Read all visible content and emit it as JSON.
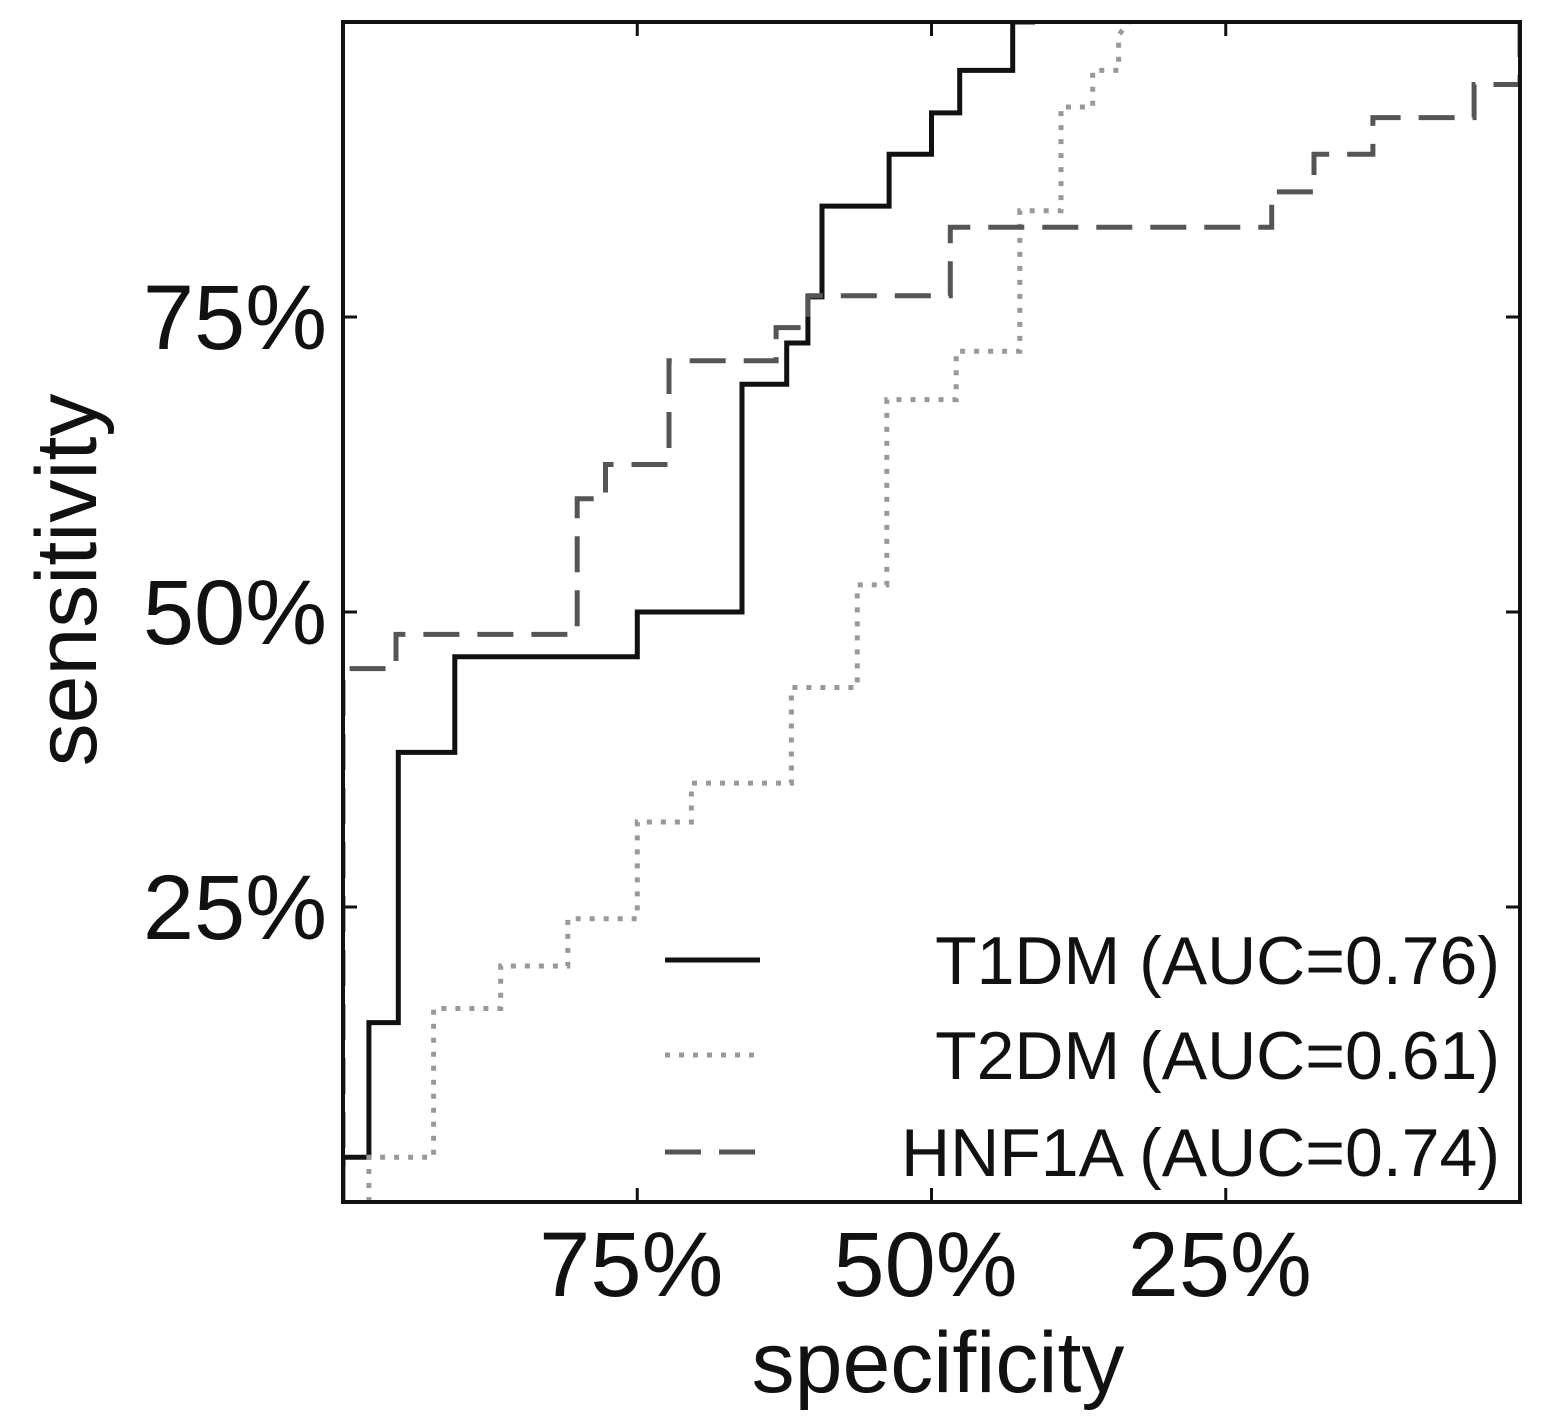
{
  "chart_data": {
    "type": "line",
    "title": "",
    "xlabel": "specificity",
    "ylabel": "sensitivity",
    "xlim": [
      100,
      0
    ],
    "ylim": [
      0,
      100
    ],
    "x_reversed": true,
    "grid": false,
    "legend_position": "bottom-right",
    "xticks": [
      75,
      50,
      25
    ],
    "xtick_labels": [
      "75%",
      "50%",
      "25%"
    ],
    "yticks": [
      25,
      50,
      75
    ],
    "ytick_labels": [
      "25%",
      "50%",
      "75%"
    ],
    "series": [
      {
        "name": "T1DM (AUC=0.76)",
        "style": "solid",
        "color": "#111111",
        "x": [
          100,
          100,
          97.8,
          97.8,
          95.3,
          95.3,
          90.5,
          90.5,
          75,
          75,
          66.1,
          66.1,
          62.3,
          62.3,
          60.5,
          60.5,
          59.3,
          59.3,
          53.6,
          53.6,
          50,
          50,
          47.6,
          47.6,
          43.1,
          43.1,
          41.2,
          41.2
        ],
        "y": [
          0,
          3.8,
          3.8,
          15.2,
          15.2,
          38.1,
          38.1,
          46.2,
          46.2,
          50,
          50,
          69.3,
          69.3,
          72.8,
          72.8,
          76.7,
          76.7,
          84.4,
          84.4,
          88.8,
          88.8,
          92.3,
          92.3,
          95.9,
          95.9,
          100,
          100,
          100
        ]
      },
      {
        "name": "T2DM (AUC=0.61)",
        "style": "dotted",
        "color": "#999999",
        "x": [
          97.8,
          97.8,
          92.3,
          92.3,
          86.6,
          86.6,
          80.9,
          80.9,
          75,
          75,
          70.4,
          70.4,
          61.9,
          61.9,
          56.3,
          56.3,
          53.8,
          53.8,
          47.9,
          47.9,
          42.5,
          42.5,
          39,
          39,
          36.3,
          36.3,
          34.1,
          34.1,
          33.2
        ],
        "y": [
          0,
          3.8,
          3.8,
          16.4,
          16.4,
          20,
          20,
          24,
          24,
          32.2,
          32.2,
          35.5,
          35.5,
          43.6,
          43.6,
          52.3,
          52.3,
          68,
          68,
          72.1,
          72.1,
          84,
          84,
          92.8,
          92.8,
          95.9,
          95.9,
          98.9,
          100
        ]
      },
      {
        "name": "HNF1A (AUC=0.74)",
        "style": "dashed",
        "color": "#555555",
        "x": [
          100,
          100,
          95.5,
          95.5,
          80.1,
          80.1,
          77.7,
          77.7,
          72.3,
          72.3,
          63.2,
          63.2,
          60.5,
          60.5,
          48.4,
          48.4,
          21.1,
          21.1,
          17.5,
          17.5,
          12.5,
          12.5,
          3.9,
          3.9,
          0,
          0
        ],
        "y": [
          0,
          45.2,
          45.2,
          48.1,
          48.1,
          59.6,
          59.6,
          62.5,
          62.5,
          71.3,
          71.3,
          74.1,
          74.1,
          76.8,
          76.8,
          82.6,
          82.6,
          85.6,
          85.6,
          88.8,
          88.8,
          91.9,
          91.9,
          94.7,
          94.7,
          100
        ]
      }
    ]
  }
}
